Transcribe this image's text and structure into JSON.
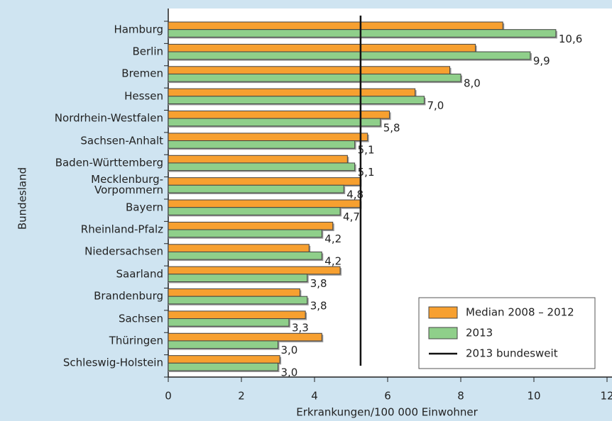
{
  "chart_data": {
    "type": "bar",
    "orientation": "horizontal",
    "x_label": "Erkrankungen/100 000 Einwohner",
    "y_label": "Bundesland",
    "categories": [
      "Hamburg",
      "Berlin",
      "Bremen",
      "Hessen",
      "Nordrhein-Westfalen",
      "Sachsen-Anhalt",
      "Baden-Württemberg",
      "Mecklenburg-\nVorpommern",
      "Bayern",
      "Rheinland-Pfalz",
      "Niedersachsen",
      "Saarland",
      "Brandenburg",
      "Sachsen",
      "Thüringen",
      "Schleswig-Holstein"
    ],
    "series": [
      {
        "name": "Median 2008 – 2012",
        "color": "#f7a030",
        "values": [
          9.15,
          8.4,
          7.7,
          6.75,
          6.05,
          5.45,
          4.9,
          5.25,
          5.25,
          4.5,
          3.85,
          4.7,
          3.6,
          3.75,
          4.2,
          3.05
        ]
      },
      {
        "name": "2013",
        "color": "#8fcf8a",
        "values": [
          10.6,
          9.9,
          8.0,
          7.0,
          5.8,
          5.1,
          5.1,
          4.8,
          4.7,
          4.2,
          4.2,
          3.8,
          3.8,
          3.3,
          3.0,
          3.0
        ],
        "value_labels": [
          "10,6",
          "9,9",
          "8,0",
          "7,0",
          "5,8",
          "5,1",
          "5,1",
          "4,8",
          "4,7",
          "4,2",
          "4,2",
          "3,8",
          "3,8",
          "3,3",
          "3,0",
          "3,0"
        ]
      }
    ],
    "reference_line": {
      "name": "2013 bundesweit",
      "value": 5.26,
      "color": "#111111"
    },
    "xlim": [
      0,
      12
    ],
    "xticks": [
      0,
      2,
      4,
      6,
      8,
      10,
      12
    ],
    "legend": "lower right"
  }
}
